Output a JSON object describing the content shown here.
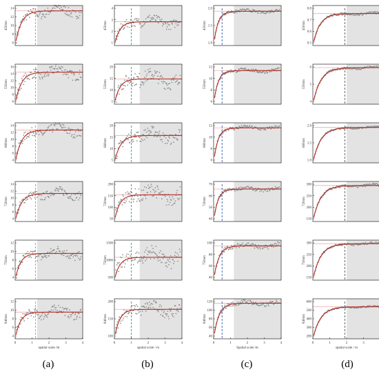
{
  "figure": {
    "captions": [
      "(a)",
      "(b)",
      "(c)",
      "(d)"
    ]
  },
  "chart_data": [
    {
      "type": "scatter",
      "group": "a",
      "xlabel": "spatial scale /m",
      "xticks": [
        "0",
        "1",
        "2",
        "3",
        "4"
      ],
      "threshold_x": 1.2,
      "shade_from": 1.3,
      "plots": [
        {
          "ylabel": "450nm",
          "yticks": [
            "14",
            "12",
            "10",
            "8",
            "6"
          ],
          "ylim": [
            6,
            15
          ],
          "sill": 13.8,
          "range": 0.35,
          "noise": 1.0
        },
        {
          "ylabel": "550nm",
          "yticks": [
            "16",
            "14",
            "12",
            "10",
            "8",
            "6"
          ],
          "ylim": [
            6,
            16
          ],
          "sill": 14.0,
          "range": 0.35,
          "noise": 1.2
        },
        {
          "ylabel": "660nm",
          "yticks": [
            "14",
            "12",
            "10",
            "8",
            "6",
            "4"
          ],
          "ylim": [
            4,
            14
          ],
          "sill": 12.2,
          "range": 0.35,
          "noise": 1.1
        },
        {
          "ylabel": "720nm",
          "yticks": [
            "14",
            "12",
            "10",
            "8",
            "6",
            "4"
          ],
          "ylim": [
            4,
            14
          ],
          "sill": 11.0,
          "range": 0.35,
          "noise": 1.0
        },
        {
          "ylabel": "750nm",
          "yticks": [
            "12",
            "10",
            "8",
            "6",
            "4"
          ],
          "ylim": [
            4,
            13
          ],
          "sill": 10.0,
          "range": 0.3,
          "noise": 1.0
        },
        {
          "ylabel": "840nm",
          "yticks": [
            "12",
            "10",
            "8",
            "6",
            "4"
          ],
          "ylim": [
            4,
            13
          ],
          "sill": 10.0,
          "range": 0.3,
          "noise": 1.0
        }
      ]
    },
    {
      "type": "scatter",
      "group": "b",
      "xlabel": "spatial scale / m",
      "xticks": [
        "0",
        "1",
        "2",
        "3",
        "4"
      ],
      "threshold_x": 1.0,
      "shade_from": 1.5,
      "plots": [
        {
          "ylabel": "450nm",
          "yticks": [
            "4",
            "3",
            "2",
            "1"
          ],
          "ylim": [
            1,
            4.2
          ],
          "sill": 2.9,
          "range": 0.3,
          "noise": 0.35
        },
        {
          "ylabel": "550nm",
          "yticks": [
            "20",
            "15",
            "10",
            "5"
          ],
          "ylim": [
            3,
            22
          ],
          "sill": 15,
          "range": 0.3,
          "noise": 3
        },
        {
          "ylabel": "660nm",
          "yticks": [
            "20",
            "15",
            "10",
            "5"
          ],
          "ylim": [
            3,
            22
          ],
          "sill": 16,
          "range": 0.35,
          "noise": 2.5
        },
        {
          "ylabel": "720nm",
          "yticks": [
            "200",
            "150",
            "100",
            "50"
          ],
          "ylim": [
            40,
            220
          ],
          "sill": 160,
          "range": 0.3,
          "noise": 30
        },
        {
          "ylabel": "750nm",
          "yticks": [
            "1500",
            "1000",
            "500"
          ],
          "ylim": [
            200,
            1600
          ],
          "sill": 1000,
          "range": 0.3,
          "noise": 250
        },
        {
          "ylabel": "840nm",
          "yticks": [
            "200",
            "150",
            "100"
          ],
          "ylim": [
            60,
            250
          ],
          "sill": 200,
          "range": 0.3,
          "noise": 25
        }
      ]
    },
    {
      "type": "scatter",
      "group": "c",
      "xlabel": "Spatial scale /m",
      "xticks": [
        "0",
        "1",
        "2",
        "3",
        "4"
      ],
      "threshold_x": 0.5,
      "shade_from": 1.2,
      "plots": [
        {
          "ylabel": "450nm",
          "yticks": [
            "2.0",
            "1.5",
            "1.0"
          ],
          "ylim": [
            0.9,
            2.3
          ],
          "sill": 2.1,
          "range": 0.25,
          "noise": 0.05
        },
        {
          "ylabel": "550nm",
          "yticks": [
            "12",
            "10",
            "8",
            "6"
          ],
          "ylim": [
            5,
            12.5
          ],
          "sill": 11.3,
          "range": 0.25,
          "noise": 0.3
        },
        {
          "ylabel": "660nm",
          "yticks": [
            "12",
            "10",
            "8",
            "6"
          ],
          "ylim": [
            5,
            13
          ],
          "sill": 12.0,
          "range": 0.25,
          "noise": 0.3
        },
        {
          "ylabel": "720nm",
          "yticks": [
            "70",
            "60",
            "50",
            "40"
          ],
          "ylim": [
            35,
            72
          ],
          "sill": 65,
          "range": 0.25,
          "noise": 1.5
        },
        {
          "ylabel": "750nm",
          "yticks": [
            "100",
            "80",
            "60",
            "40"
          ],
          "ylim": [
            35,
            105
          ],
          "sill": 95,
          "range": 0.3,
          "noise": 4
        },
        {
          "ylabel": "840nm",
          "yticks": [
            "120",
            "100",
            "80",
            "60",
            "40"
          ],
          "ylim": [
            35,
            125
          ],
          "sill": 115,
          "range": 0.3,
          "noise": 5
        }
      ]
    },
    {
      "type": "scatter",
      "group": "d",
      "xlabel": "spatial scale / m",
      "xticks": [
        "0",
        "1",
        "2",
        "3",
        "4"
      ],
      "threshold_x": 1.9,
      "shade_from": 2.0,
      "plots": [
        {
          "ylabel": "450nm",
          "yticks": [
            "0.8",
            "0.7",
            "0.6",
            "0.5"
          ],
          "ylim": [
            0.5,
            0.85
          ],
          "sill": 0.78,
          "range": 0.4,
          "noise": 0.01
        },
        {
          "ylabel": "550nm",
          "yticks": [
            "6",
            "5",
            "4"
          ],
          "ylim": [
            3.5,
            7
          ],
          "sill": 6.7,
          "range": 0.45,
          "noise": 0.1
        },
        {
          "ylabel": "660nm",
          "yticks": [
            "2.0",
            "1.5",
            "1.0"
          ],
          "ylim": [
            0.8,
            2.1
          ],
          "sill": 1.95,
          "range": 0.45,
          "noise": 0.03
        },
        {
          "ylabel": "720nm",
          "yticks": [
            "300",
            "250",
            "200",
            "150"
          ],
          "ylim": [
            120,
            320
          ],
          "sill": 300,
          "range": 0.45,
          "noise": 6
        },
        {
          "ylabel": "750nm",
          "yticks": [
            "300",
            "250",
            "200",
            "150"
          ],
          "ylim": [
            120,
            350
          ],
          "sill": 330,
          "range": 0.45,
          "noise": 6
        },
        {
          "ylabel": "840nm",
          "yticks": [
            "600",
            "500",
            "400",
            "300",
            "200"
          ],
          "ylim": [
            150,
            650
          ],
          "sill": 550,
          "range": 0.45,
          "noise": 10
        }
      ]
    }
  ],
  "colors": {
    "points": "#8a8a8a",
    "fit_curve": "#b3281f",
    "sill_line": "#f0a8a8",
    "shade": "#e3e3e3",
    "threshold_line": [
      "#e08a1e",
      "#2a9d8f",
      "#2a5aa8",
      "#555555"
    ],
    "frame": "#000000"
  }
}
